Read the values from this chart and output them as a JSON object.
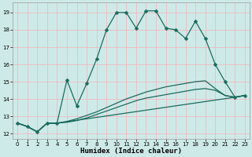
{
  "xlabel": "Humidex (Indice chaleur)",
  "bg_color": "#ceeae8",
  "grid_color": "#f0b8c0",
  "line_color": "#1a6b5e",
  "xlim": [
    -0.5,
    23.5
  ],
  "ylim": [
    11.7,
    19.6
  ],
  "xticks": [
    0,
    1,
    2,
    3,
    4,
    5,
    6,
    7,
    8,
    9,
    10,
    11,
    12,
    13,
    14,
    15,
    16,
    17,
    18,
    19,
    20,
    21,
    22,
    23
  ],
  "yticks": [
    12,
    13,
    14,
    15,
    16,
    17,
    18,
    19
  ],
  "line1_x": [
    0,
    1,
    2,
    3,
    4,
    5,
    6,
    7,
    8,
    9,
    10,
    11,
    12,
    13,
    14,
    15,
    16,
    17,
    18,
    19,
    20,
    21,
    22,
    23
  ],
  "line1_y": [
    12.6,
    12.4,
    12.1,
    12.6,
    12.6,
    15.1,
    13.6,
    14.9,
    16.3,
    18.0,
    19.0,
    19.0,
    18.1,
    19.1,
    19.1,
    18.1,
    18.0,
    17.5,
    18.5,
    17.5,
    16.0,
    15.0,
    14.1,
    14.2
  ],
  "line2_x": [
    0,
    1,
    2,
    3,
    4,
    22,
    23
  ],
  "line2_y": [
    12.6,
    12.4,
    12.1,
    12.6,
    12.6,
    14.1,
    14.2
  ],
  "line3_x": [
    0,
    1,
    2,
    3,
    4,
    5,
    6,
    7,
    8,
    9,
    10,
    11,
    12,
    13,
    14,
    15,
    16,
    17,
    18,
    19,
    20,
    21,
    22,
    23
  ],
  "line3_y": [
    12.6,
    12.4,
    12.1,
    12.6,
    12.6,
    12.65,
    12.75,
    12.9,
    13.1,
    13.3,
    13.5,
    13.7,
    13.9,
    14.05,
    14.15,
    14.25,
    14.35,
    14.45,
    14.55,
    14.6,
    14.5,
    14.2,
    14.1,
    14.2
  ],
  "line4_x": [
    0,
    1,
    2,
    3,
    4,
    5,
    6,
    7,
    8,
    9,
    10,
    11,
    12,
    13,
    14,
    15,
    16,
    17,
    18,
    19,
    20,
    21,
    22,
    23
  ],
  "line4_y": [
    12.6,
    12.4,
    12.1,
    12.6,
    12.6,
    12.7,
    12.85,
    13.05,
    13.25,
    13.5,
    13.75,
    14.0,
    14.2,
    14.4,
    14.55,
    14.7,
    14.8,
    14.9,
    15.0,
    15.05,
    14.6,
    14.2,
    14.1,
    14.2
  ]
}
